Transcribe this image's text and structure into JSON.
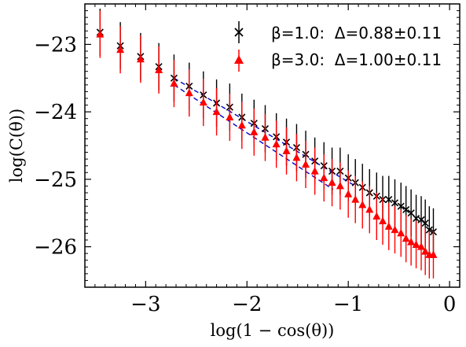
{
  "chart_data": {
    "type": "scatter",
    "xlabel": "log(1 − cos(θ))",
    "ylabel": "log(C(θ))",
    "xlim": [
      -3.6,
      0.1
    ],
    "ylim": [
      -26.6,
      -22.4
    ],
    "x_ticks": [
      -3,
      -2,
      -1,
      0
    ],
    "x_tick_labels": [
      "−3",
      "−2",
      "−1",
      "0"
    ],
    "y_ticks": [
      -23,
      -24,
      -25,
      -26
    ],
    "y_tick_labels": [
      "−23",
      "−24",
      "−25",
      "−26"
    ],
    "grid": false,
    "legend_position": "top-right",
    "series": [
      {
        "name": "β=1.0:  Δ=0.88±0.11",
        "marker": "x",
        "color": "#000000",
        "x": [
          -3.45,
          -3.25,
          -3.05,
          -2.87,
          -2.72,
          -2.57,
          -2.43,
          -2.3,
          -2.17,
          -2.05,
          -1.93,
          -1.82,
          -1.71,
          -1.61,
          -1.51,
          -1.42,
          -1.33,
          -1.24,
          -1.16,
          -1.08,
          -1.0,
          -0.93,
          -0.86,
          -0.79,
          -0.72,
          -0.66,
          -0.6,
          -0.54,
          -0.48,
          -0.43,
          -0.38,
          -0.33,
          -0.28,
          -0.24,
          -0.2,
          -0.16
        ],
        "y": [
          -22.82,
          -23.02,
          -23.18,
          -23.33,
          -23.5,
          -23.62,
          -23.75,
          -23.87,
          -23.93,
          -24.08,
          -24.17,
          -24.25,
          -24.37,
          -24.45,
          -24.53,
          -24.63,
          -24.73,
          -24.8,
          -24.88,
          -24.88,
          -24.98,
          -25.05,
          -25.12,
          -25.2,
          -25.25,
          -25.3,
          -25.3,
          -25.35,
          -25.4,
          -25.45,
          -25.5,
          -25.58,
          -25.6,
          -25.65,
          -25.75,
          -25.78
        ],
        "yerr": 0.35
      },
      {
        "name": "β=3.0:  Δ=1.00±0.11",
        "marker": "triangle",
        "color": "#ff0000",
        "x": [
          -3.45,
          -3.25,
          -3.05,
          -2.87,
          -2.72,
          -2.57,
          -2.43,
          -2.3,
          -2.17,
          -2.05,
          -1.93,
          -1.82,
          -1.71,
          -1.61,
          -1.51,
          -1.42,
          -1.33,
          -1.24,
          -1.16,
          -1.08,
          -1.0,
          -0.93,
          -0.86,
          -0.79,
          -0.72,
          -0.66,
          -0.6,
          -0.54,
          -0.48,
          -0.43,
          -0.38,
          -0.33,
          -0.28,
          -0.24,
          -0.2,
          -0.16
        ],
        "y": [
          -22.85,
          -23.08,
          -23.22,
          -23.38,
          -23.58,
          -23.72,
          -23.86,
          -24.0,
          -24.08,
          -24.2,
          -24.3,
          -24.38,
          -24.48,
          -24.58,
          -24.68,
          -24.78,
          -24.88,
          -24.98,
          -25.05,
          -25.1,
          -25.22,
          -25.3,
          -25.38,
          -25.45,
          -25.55,
          -25.62,
          -25.7,
          -25.75,
          -25.8,
          -25.88,
          -25.93,
          -25.97,
          -26.0,
          -26.07,
          -26.12,
          -26.12
        ],
        "yerr": 0.35
      }
    ],
    "fit_lines": [
      {
        "color": "#0000cc",
        "x": [
          -2.72,
          -0.93
        ],
        "y": [
          -23.5,
          -25.1
        ]
      },
      {
        "color": "#0000cc",
        "x": [
          -2.72,
          -1.15
        ],
        "y": [
          -23.6,
          -25.15
        ]
      }
    ]
  }
}
